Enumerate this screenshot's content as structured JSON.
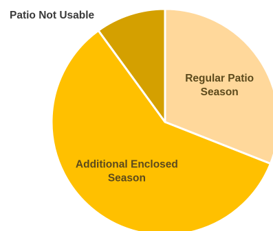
{
  "chart_data": {
    "type": "pie",
    "title": "",
    "slices": [
      {
        "label": "Regular Patio Season",
        "label_lines": [
          "Regular Patio",
          "Season"
        ],
        "value": 31,
        "color": "#ffd89b",
        "label_pos": "inside"
      },
      {
        "label": "Additional Enclosed Season",
        "label_lines": [
          "Additional Enclosed",
          "Season"
        ],
        "value": 59,
        "color": "#ffc000",
        "label_pos": "inside"
      },
      {
        "label": "Patio Not Usable",
        "label_lines": [
          "Patio Not Usable"
        ],
        "value": 10,
        "color": "#d4a000",
        "label_pos": "outside"
      }
    ],
    "start_angle": "12 o'clock",
    "direction": "clockwise",
    "legend": "none"
  }
}
